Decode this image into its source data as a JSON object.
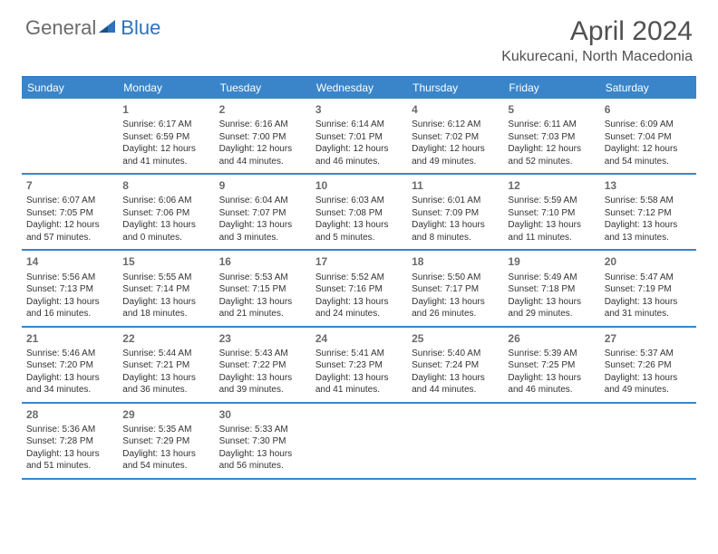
{
  "brand": {
    "part1": "General",
    "part2": "Blue"
  },
  "title": "April 2024",
  "location": "Kukurecani, North Macedonia",
  "colors": {
    "header_bg": "#3a85c9",
    "header_border": "#2e72b8",
    "brand_gray": "#6b6b6b",
    "brand_blue": "#2e72b8",
    "text": "#333333",
    "daynum": "#6a6a6a",
    "title_color": "#505050",
    "background": "#ffffff"
  },
  "typography": {
    "title_fontsize": 30,
    "location_fontsize": 16,
    "dayheader_fontsize": 12,
    "daynum_fontsize": 12,
    "cell_fontsize": 10
  },
  "dayNames": [
    "Sunday",
    "Monday",
    "Tuesday",
    "Wednesday",
    "Thursday",
    "Friday",
    "Saturday"
  ],
  "weeks": [
    [
      null,
      {
        "n": "1",
        "r": "6:17 AM",
        "s": "6:59 PM",
        "d": "12 hours and 41 minutes."
      },
      {
        "n": "2",
        "r": "6:16 AM",
        "s": "7:00 PM",
        "d": "12 hours and 44 minutes."
      },
      {
        "n": "3",
        "r": "6:14 AM",
        "s": "7:01 PM",
        "d": "12 hours and 46 minutes."
      },
      {
        "n": "4",
        "r": "6:12 AM",
        "s": "7:02 PM",
        "d": "12 hours and 49 minutes."
      },
      {
        "n": "5",
        "r": "6:11 AM",
        "s": "7:03 PM",
        "d": "12 hours and 52 minutes."
      },
      {
        "n": "6",
        "r": "6:09 AM",
        "s": "7:04 PM",
        "d": "12 hours and 54 minutes."
      }
    ],
    [
      {
        "n": "7",
        "r": "6:07 AM",
        "s": "7:05 PM",
        "d": "12 hours and 57 minutes."
      },
      {
        "n": "8",
        "r": "6:06 AM",
        "s": "7:06 PM",
        "d": "13 hours and 0 minutes."
      },
      {
        "n": "9",
        "r": "6:04 AM",
        "s": "7:07 PM",
        "d": "13 hours and 3 minutes."
      },
      {
        "n": "10",
        "r": "6:03 AM",
        "s": "7:08 PM",
        "d": "13 hours and 5 minutes."
      },
      {
        "n": "11",
        "r": "6:01 AM",
        "s": "7:09 PM",
        "d": "13 hours and 8 minutes."
      },
      {
        "n": "12",
        "r": "5:59 AM",
        "s": "7:10 PM",
        "d": "13 hours and 11 minutes."
      },
      {
        "n": "13",
        "r": "5:58 AM",
        "s": "7:12 PM",
        "d": "13 hours and 13 minutes."
      }
    ],
    [
      {
        "n": "14",
        "r": "5:56 AM",
        "s": "7:13 PM",
        "d": "13 hours and 16 minutes."
      },
      {
        "n": "15",
        "r": "5:55 AM",
        "s": "7:14 PM",
        "d": "13 hours and 18 minutes."
      },
      {
        "n": "16",
        "r": "5:53 AM",
        "s": "7:15 PM",
        "d": "13 hours and 21 minutes."
      },
      {
        "n": "17",
        "r": "5:52 AM",
        "s": "7:16 PM",
        "d": "13 hours and 24 minutes."
      },
      {
        "n": "18",
        "r": "5:50 AM",
        "s": "7:17 PM",
        "d": "13 hours and 26 minutes."
      },
      {
        "n": "19",
        "r": "5:49 AM",
        "s": "7:18 PM",
        "d": "13 hours and 29 minutes."
      },
      {
        "n": "20",
        "r": "5:47 AM",
        "s": "7:19 PM",
        "d": "13 hours and 31 minutes."
      }
    ],
    [
      {
        "n": "21",
        "r": "5:46 AM",
        "s": "7:20 PM",
        "d": "13 hours and 34 minutes."
      },
      {
        "n": "22",
        "r": "5:44 AM",
        "s": "7:21 PM",
        "d": "13 hours and 36 minutes."
      },
      {
        "n": "23",
        "r": "5:43 AM",
        "s": "7:22 PM",
        "d": "13 hours and 39 minutes."
      },
      {
        "n": "24",
        "r": "5:41 AM",
        "s": "7:23 PM",
        "d": "13 hours and 41 minutes."
      },
      {
        "n": "25",
        "r": "5:40 AM",
        "s": "7:24 PM",
        "d": "13 hours and 44 minutes."
      },
      {
        "n": "26",
        "r": "5:39 AM",
        "s": "7:25 PM",
        "d": "13 hours and 46 minutes."
      },
      {
        "n": "27",
        "r": "5:37 AM",
        "s": "7:26 PM",
        "d": "13 hours and 49 minutes."
      }
    ],
    [
      {
        "n": "28",
        "r": "5:36 AM",
        "s": "7:28 PM",
        "d": "13 hours and 51 minutes."
      },
      {
        "n": "29",
        "r": "5:35 AM",
        "s": "7:29 PM",
        "d": "13 hours and 54 minutes."
      },
      {
        "n": "30",
        "r": "5:33 AM",
        "s": "7:30 PM",
        "d": "13 hours and 56 minutes."
      },
      null,
      null,
      null,
      null
    ]
  ],
  "labels": {
    "sunrise": "Sunrise:",
    "sunset": "Sunset:",
    "daylight": "Daylight:"
  }
}
